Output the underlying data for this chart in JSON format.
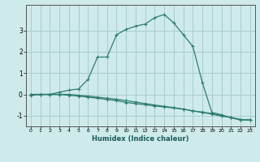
{
  "xlabel": "Humidex (Indice chaleur)",
  "background_color": "#ceeaea",
  "grid_color": "#aacccc",
  "line_color": "#2d7d6e",
  "xlim": [
    -0.5,
    23.5
  ],
  "ylim": [
    -1.5,
    4.2
  ],
  "yticks": [
    -1,
    0,
    1,
    2,
    3
  ],
  "xticks": [
    0,
    1,
    2,
    3,
    4,
    5,
    6,
    7,
    8,
    9,
    10,
    11,
    12,
    13,
    14,
    15,
    16,
    17,
    18,
    19,
    20,
    21,
    22,
    23
  ],
  "series1_x": [
    0,
    1,
    2,
    3,
    4,
    5,
    6,
    7,
    8,
    9,
    10,
    11,
    12,
    13,
    14,
    15,
    16,
    17,
    18,
    19,
    20,
    21,
    22,
    23
  ],
  "series1_y": [
    0.0,
    0.0,
    0.0,
    0.1,
    0.2,
    0.25,
    0.7,
    1.75,
    1.75,
    2.8,
    3.05,
    3.2,
    3.3,
    3.6,
    3.75,
    3.35,
    2.8,
    2.25,
    0.55,
    -0.85,
    -0.95,
    -1.1,
    -1.2,
    -1.2
  ],
  "series2_x": [
    0,
    1,
    2,
    3,
    4,
    5,
    6,
    7,
    8,
    9,
    10,
    11,
    12,
    13,
    14,
    15,
    16,
    17,
    18,
    19,
    20,
    21,
    22,
    23
  ],
  "series2_y": [
    0.0,
    0.0,
    0.0,
    0.0,
    -0.04,
    -0.08,
    -0.13,
    -0.18,
    -0.24,
    -0.29,
    -0.38,
    -0.43,
    -0.49,
    -0.54,
    -0.59,
    -0.64,
    -0.69,
    -0.78,
    -0.83,
    -0.9,
    -1.0,
    -1.08,
    -1.18,
    -1.2
  ],
  "series3_x": [
    0,
    1,
    2,
    3,
    4,
    5,
    6,
    7,
    8,
    9,
    10,
    11,
    12,
    13,
    14,
    15,
    16,
    17,
    18,
    19,
    20,
    21,
    22,
    23
  ],
  "series3_y": [
    -0.05,
    0.0,
    0.0,
    0.0,
    0.0,
    -0.04,
    -0.08,
    -0.13,
    -0.18,
    -0.23,
    -0.29,
    -0.36,
    -0.43,
    -0.5,
    -0.56,
    -0.62,
    -0.69,
    -0.77,
    -0.85,
    -0.92,
    -1.02,
    -1.08,
    -1.18,
    -1.2
  ]
}
